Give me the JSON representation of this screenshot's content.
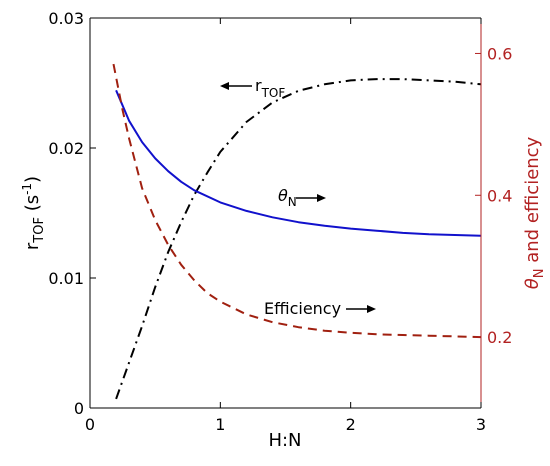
{
  "chart_data": {
    "type": "line",
    "xlabel": "H:N",
    "ylabel_left": {
      "main": "r",
      "sub": "TOF",
      "unit_prefix": " (s",
      "unit_sup": "-1",
      "unit_suffix": ")"
    },
    "ylabel_right": {
      "theta": "θ",
      "sub": "N",
      "suffix": " and efficiency"
    },
    "xlim": [
      0,
      3
    ],
    "ylim_left": [
      0,
      0.03
    ],
    "ylim_right": [
      0.1,
      0.65
    ],
    "x_ticks": [
      "0",
      "1",
      "2",
      "3"
    ],
    "x_tick_values": [
      0,
      1,
      2,
      3
    ],
    "y_left_ticks": [
      "0",
      "0.01",
      "0.02",
      "0.03"
    ],
    "y_left_tick_values": [
      0,
      0.01,
      0.02,
      0.03
    ],
    "y_right_ticks": [
      "0.2",
      "0.4",
      "0.6"
    ],
    "y_right_tick_values": [
      0.2,
      0.4,
      0.6
    ],
    "right_axis_color": "#b22222",
    "series": [
      {
        "axis": "left",
        "color": "#000000",
        "dash": "dashdot",
        "x": [
          0.2,
          0.3,
          0.4,
          0.5,
          0.6,
          0.7,
          0.8,
          0.9,
          1.0,
          1.2,
          1.4,
          1.6,
          1.8,
          2.0,
          2.2,
          2.4,
          2.6,
          2.8,
          3.0
        ],
        "y": [
          0.0007,
          0.0035,
          0.0063,
          0.0093,
          0.012,
          0.0143,
          0.0164,
          0.0181,
          0.0197,
          0.022,
          0.0235,
          0.0244,
          0.0249,
          0.0252,
          0.0253,
          0.0253,
          0.0252,
          0.0251,
          0.0249
        ]
      },
      {
        "axis": "right",
        "color": "#1111cc",
        "dash": "solid",
        "x": [
          0.2,
          0.3,
          0.4,
          0.5,
          0.6,
          0.7,
          0.8,
          1.0,
          1.2,
          1.4,
          1.6,
          1.8,
          2.0,
          2.2,
          2.4,
          2.6,
          2.8,
          3.0
        ],
        "y": [
          0.548,
          0.505,
          0.475,
          0.452,
          0.434,
          0.419,
          0.407,
          0.39,
          0.378,
          0.369,
          0.362,
          0.357,
          0.353,
          0.35,
          0.347,
          0.345,
          0.344,
          0.343
        ]
      },
      {
        "axis": "right",
        "color": "#a02010",
        "dash": "dashed",
        "x": [
          0.18,
          0.25,
          0.3,
          0.4,
          0.5,
          0.6,
          0.7,
          0.8,
          0.9,
          1.0,
          1.2,
          1.4,
          1.6,
          1.8,
          2.0,
          2.2,
          2.4,
          2.6,
          2.8,
          3.0
        ],
        "y": [
          0.585,
          0.52,
          0.48,
          0.41,
          0.365,
          0.33,
          0.302,
          0.28,
          0.262,
          0.25,
          0.232,
          0.221,
          0.214,
          0.209,
          0.206,
          0.204,
          0.203,
          0.202,
          0.201,
          0.2
        ]
      }
    ],
    "annotations": [
      {
        "kind": "rtof",
        "main": "r",
        "sub": "TOF",
        "arrow": "left"
      },
      {
        "kind": "theta",
        "main": "θ",
        "sub": "N",
        "arrow": "right"
      },
      {
        "kind": "eff",
        "main": "Efficiency",
        "arrow": "right"
      }
    ]
  }
}
